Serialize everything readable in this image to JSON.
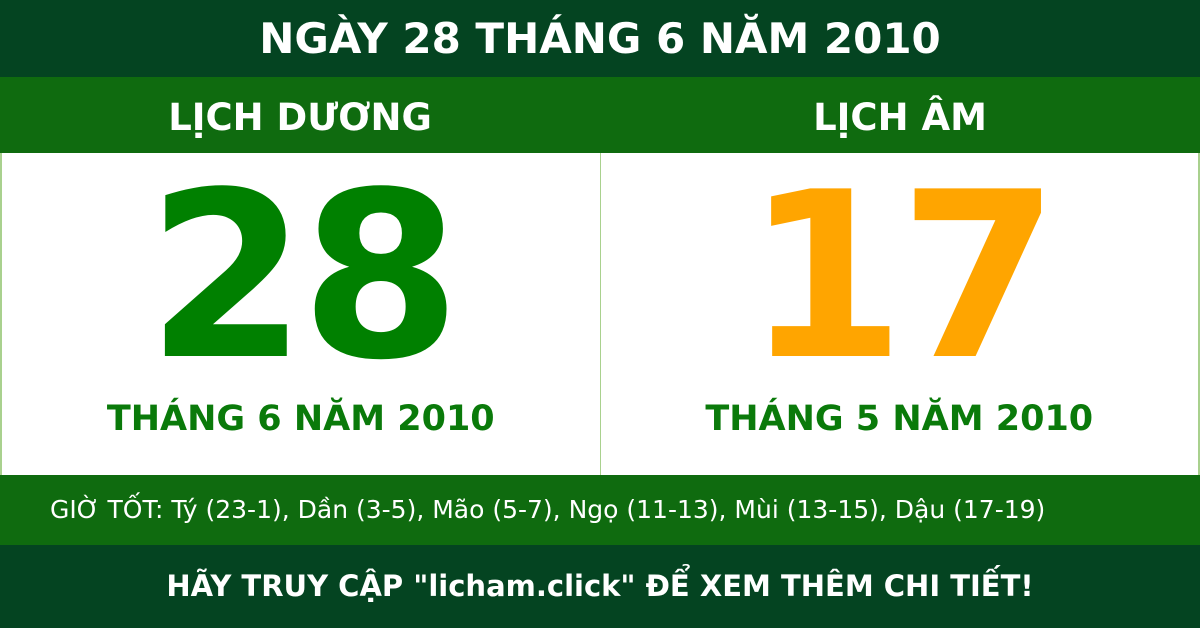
{
  "title": "NGÀY 28 THÁNG 6 NĂM 2010",
  "solar": {
    "heading": "LỊCH DƯƠNG",
    "day": "28",
    "month_year": "THÁNG 6 NĂM 2010"
  },
  "lunar": {
    "heading": "LỊCH ÂM",
    "day": "17",
    "month_year": "THÁNG 5 NĂM 2010"
  },
  "good_hours": "GIỜ TỐT: Tý (23-1), Dần (3-5), Mão (5-7), Ngọ (11-13), Mùi (13-15), Dậu (17-19)",
  "footer": "HÃY TRUY CẬP \"licham.click\" ĐỂ XEM THÊM CHI TIẾT!",
  "colors": {
    "dark_green": "#044421",
    "green_bar": "#0f6b0f",
    "solar_number": "#008000",
    "lunar_number": "#ffa500"
  }
}
